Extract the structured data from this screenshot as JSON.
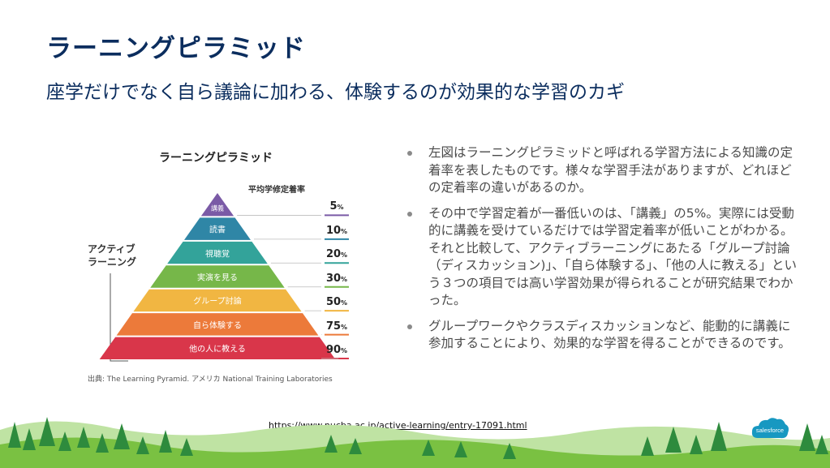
{
  "slide": {
    "title": "ラーニングピラミッド",
    "subtitle": "座学だけでなく自ら議論に加わる、体験するのが効果的な学習のカギ"
  },
  "figure": {
    "title": "ラーニングピラミッド",
    "rate_header": "平均学修定着率",
    "active_learning_label_line1": "アクティブ",
    "active_learning_label_line2": "ラーニング",
    "caption": "出典: The Learning Pyramid. アメリカ National Training Laboratories",
    "levels": [
      {
        "label": "講義",
        "rate": "5",
        "unit": "%",
        "color": "#7a5aa6",
        "rate_value": 5
      },
      {
        "label": "読書",
        "rate": "10",
        "unit": "%",
        "color": "#2f86a6",
        "rate_value": 10
      },
      {
        "label": "視聴覚",
        "rate": "20",
        "unit": "%",
        "color": "#33a39a",
        "rate_value": 20
      },
      {
        "label": "実演を見る",
        "rate": "30",
        "unit": "%",
        "color": "#76b749",
        "rate_value": 30
      },
      {
        "label": "グループ討論",
        "rate": "50",
        "unit": "%",
        "color": "#f1b642",
        "rate_value": 50
      },
      {
        "label": "自ら体験する",
        "rate": "75",
        "unit": "%",
        "color": "#ec7a3a",
        "rate_value": 75
      },
      {
        "label": "他の人に教える",
        "rate": "90",
        "unit": "%",
        "color": "#d9364a",
        "rate_value": 90
      }
    ]
  },
  "bullets": [
    "左図はラーニングピラミッドと呼ばれる学習方法による知識の定着率を表したものです。様々な学習手法がありますが、どれほどの定着率の違いがあるのか。",
    "その中で学習定着が一番低いのは、「講義」の5%。実際には受動的に講義を受けているだけでは学習定着率が低いことがわかる。それと比較して、アクティブラーニングにあたる「グループ討論（ディスカッション)」、「自ら体験する」、「他の人に教える」という３つの項目では高い学習効果が得られることが研究結果でわかった。",
    "グループワークやクラスディスカッションなど、能動的に講義に参加することにより、効果的な学習を得ることができるのです。"
  ],
  "source_url": "https://www.nucba.ac.jp/active-learning/entry-17091.html",
  "logo_text": "salesforce",
  "colors": {
    "title": "#0b2d5e",
    "tree_dark": "#2e8b3d",
    "tree_light": "#7ac142",
    "logo_blue": "#1798c1"
  }
}
